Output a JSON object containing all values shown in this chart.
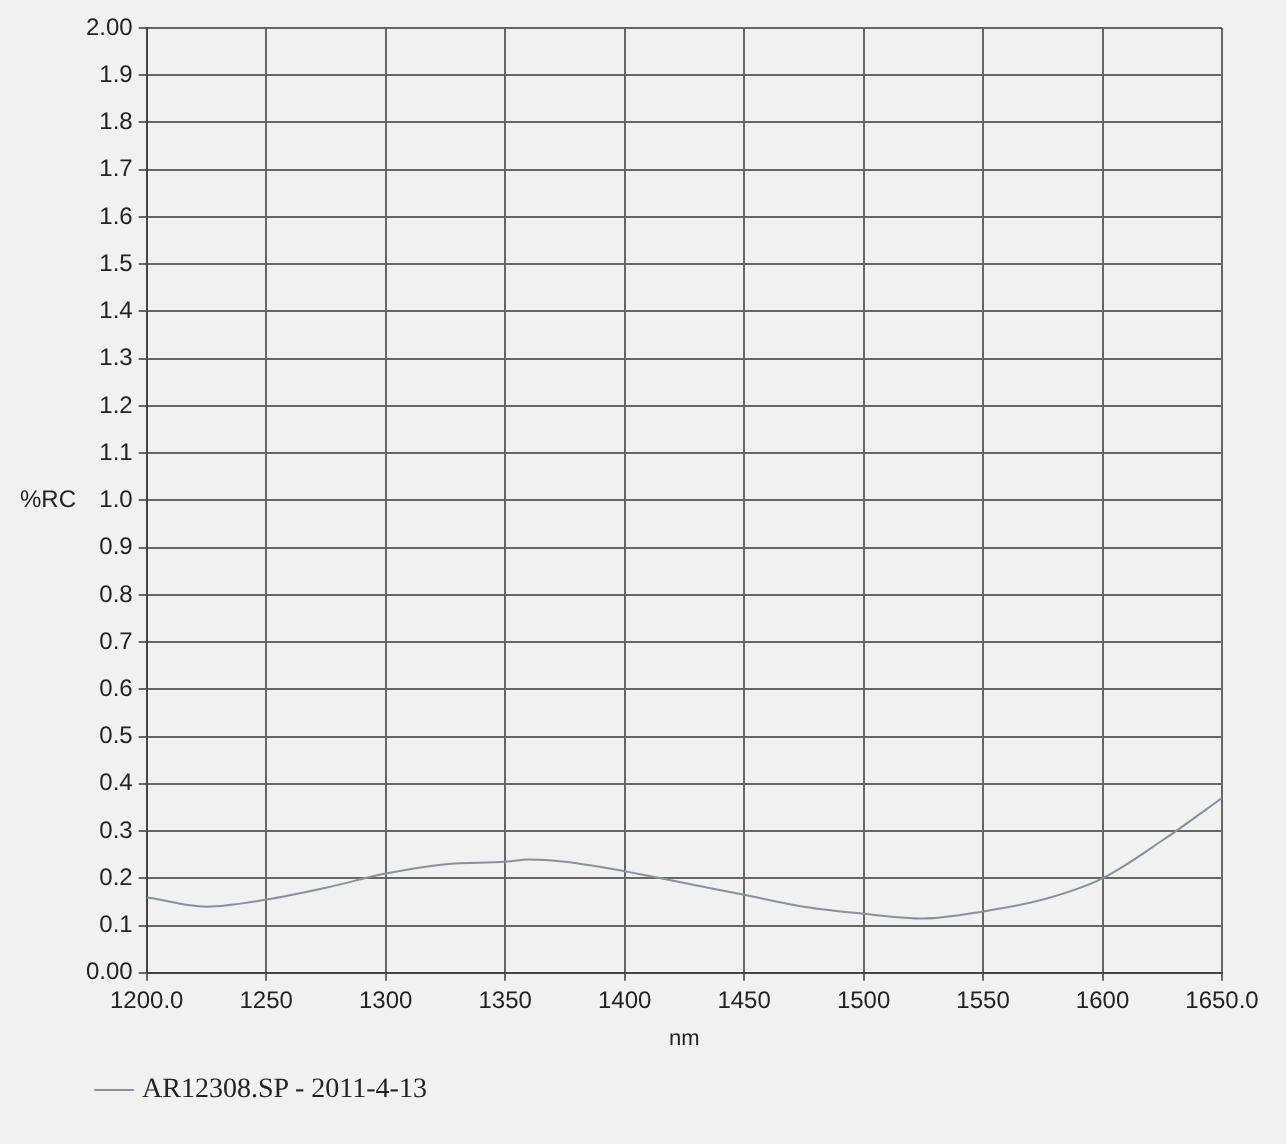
{
  "chart_data": {
    "type": "line",
    "xlabel": "nm",
    "ylabel": "%RC",
    "x": [
      1200,
      1225,
      1250,
      1275,
      1300,
      1325,
      1350,
      1360,
      1375,
      1400,
      1425,
      1450,
      1475,
      1500,
      1525,
      1550,
      1575,
      1600,
      1625,
      1650
    ],
    "series": [
      {
        "name": "AR12308.SP - 2011-4-13",
        "color": "#8a90a4",
        "values": [
          0.16,
          0.14,
          0.155,
          0.18,
          0.21,
          0.23,
          0.235,
          0.24,
          0.235,
          0.215,
          0.19,
          0.165,
          0.14,
          0.125,
          0.115,
          0.13,
          0.155,
          0.2,
          0.28,
          0.37
        ]
      }
    ],
    "xlim": [
      1200,
      1650
    ],
    "xticks": [
      {
        "value": 1200,
        "label": "1200.0"
      },
      1250,
      1300,
      1350,
      1400,
      1450,
      1500,
      1550,
      1600,
      {
        "value": 1650,
        "label": "1650.0"
      }
    ],
    "ylim": [
      0,
      2
    ],
    "yticks": [
      {
        "value": 0,
        "label": "0.00"
      },
      0.1,
      0.2,
      0.3,
      0.4,
      0.5,
      0.6,
      0.7,
      0.8,
      0.9,
      {
        "value": 1,
        "label": "1.0"
      },
      1.1,
      1.2,
      1.3,
      1.4,
      1.5,
      1.6,
      1.7,
      1.8,
      1.9,
      {
        "value": 2,
        "label": "2.00"
      }
    ],
    "grid": true,
    "legend": "bottom",
    "marker": "none",
    "line_style": "solid"
  }
}
